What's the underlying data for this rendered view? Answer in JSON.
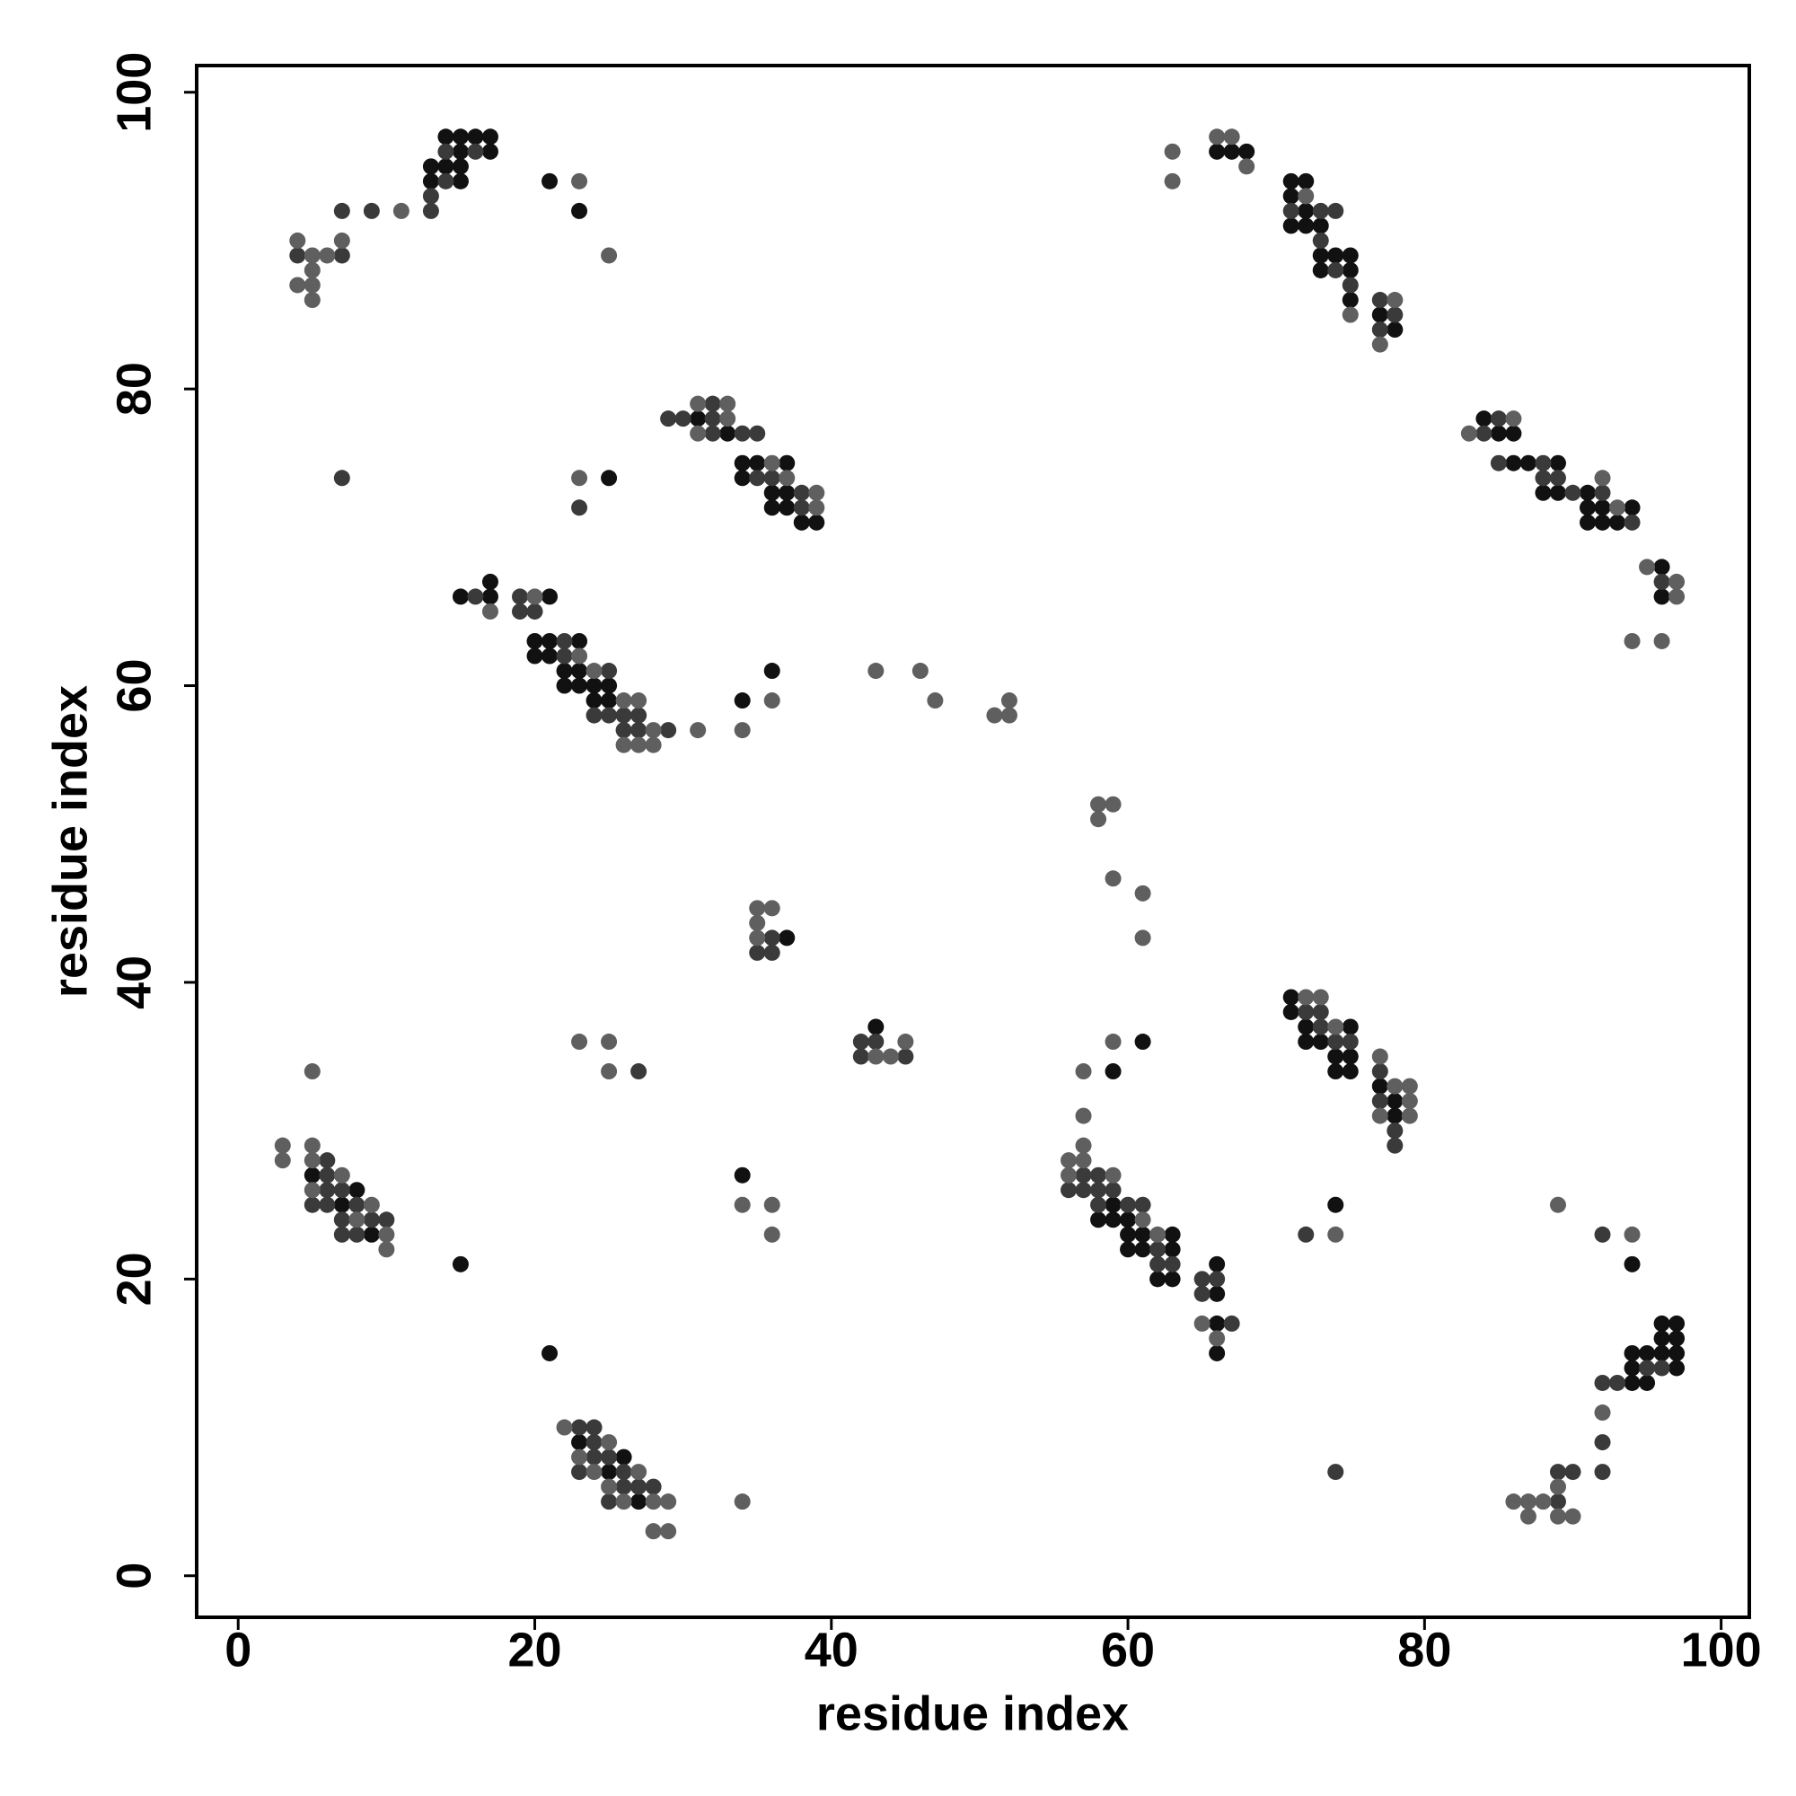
{
  "chart_data": {
    "type": "scatter",
    "xlabel": "residue index",
    "ylabel": "residue index",
    "xlim": [
      -2.8,
      101.9
    ],
    "ylim": [
      -2.8,
      101.8
    ],
    "xticks": [
      0,
      20,
      40,
      60,
      80,
      100
    ],
    "yticks": [
      0,
      20,
      40,
      60,
      80,
      100
    ],
    "grid": false,
    "series": [
      {
        "color": "#111111",
        "x": [
          13,
          13,
          14,
          14,
          15,
          15,
          15,
          15,
          16,
          17,
          17,
          21,
          23,
          31,
          33,
          34,
          34,
          35,
          36,
          36,
          37,
          37,
          37,
          38,
          39,
          25,
          15,
          17,
          17,
          21,
          20,
          20,
          21,
          21,
          22,
          22,
          23,
          23,
          23,
          24,
          24,
          25,
          25,
          34,
          36,
          37,
          43,
          5,
          7,
          8,
          9,
          15,
          21,
          23,
          25,
          26,
          27,
          34,
          59,
          61,
          58,
          59,
          59,
          60,
          60,
          61,
          61,
          60,
          62,
          63,
          63,
          63,
          66,
          66,
          66,
          66,
          71,
          71,
          72,
          72,
          73,
          74,
          74,
          75,
          75,
          75,
          77,
          78,
          78,
          74,
          66,
          67,
          68,
          71,
          71,
          71,
          72,
          72,
          72,
          73,
          73,
          73,
          74,
          75,
          75,
          75,
          77,
          78,
          84,
          85,
          86,
          86,
          87,
          88,
          89,
          89,
          91,
          91,
          91,
          92,
          92,
          93,
          94,
          96,
          96,
          94,
          94,
          94,
          94,
          95,
          95,
          96,
          96,
          96,
          97,
          97,
          97,
          97
        ],
        "values": [
          94,
          95,
          95,
          97,
          94,
          95,
          96,
          97,
          97,
          96,
          97,
          94,
          92,
          78,
          77,
          75,
          74,
          75,
          73,
          72,
          75,
          73,
          72,
          71,
          71,
          74,
          66,
          67,
          66,
          66,
          63,
          62,
          63,
          62,
          61,
          60,
          63,
          61,
          60,
          60,
          59,
          60,
          59,
          59,
          61,
          43,
          37,
          27,
          25,
          26,
          23,
          21,
          15,
          9,
          7,
          8,
          5,
          27,
          34,
          36,
          24,
          25,
          24,
          24,
          23,
          23,
          22,
          22,
          20,
          23,
          22,
          20,
          21,
          19,
          17,
          15,
          39,
          38,
          37,
          36,
          36,
          35,
          34,
          37,
          35,
          34,
          33,
          32,
          31,
          25,
          96,
          96,
          96,
          94,
          93,
          91,
          94,
          92,
          91,
          91,
          89,
          88,
          89,
          89,
          88,
          86,
          85,
          84,
          78,
          77,
          77,
          75,
          75,
          73,
          75,
          73,
          73,
          72,
          71,
          72,
          71,
          71,
          72,
          68,
          66,
          21,
          15,
          14,
          13,
          15,
          13,
          17,
          16,
          15,
          17,
          16,
          15,
          14
        ]
      },
      {
        "color": "#3a3a3a",
        "x": [
          4,
          7,
          7,
          9,
          13,
          13,
          14,
          14,
          16,
          29,
          30,
          32,
          32,
          32,
          34,
          35,
          35,
          36,
          38,
          38,
          7,
          23,
          16,
          19,
          19,
          20,
          22,
          22,
          24,
          25,
          25,
          26,
          26,
          27,
          27,
          29,
          36,
          35,
          36,
          42,
          42,
          43,
          45,
          27,
          5,
          6,
          6,
          6,
          6,
          7,
          7,
          7,
          8,
          8,
          9,
          10,
          23,
          23,
          24,
          24,
          24,
          25,
          25,
          26,
          26,
          27,
          28,
          56,
          57,
          57,
          58,
          58,
          58,
          59,
          60,
          61,
          62,
          62,
          63,
          65,
          65,
          66,
          67,
          72,
          73,
          73,
          74,
          75,
          77,
          77,
          78,
          78,
          72,
          74,
          71,
          73,
          73,
          74,
          74,
          75,
          77,
          77,
          78,
          84,
          85,
          85,
          88,
          88,
          89,
          90,
          92,
          94,
          96,
          92,
          92,
          93,
          95,
          96,
          92,
          92,
          89,
          90,
          89
        ],
        "values": [
          89,
          92,
          89,
          92,
          92,
          93,
          94,
          96,
          96,
          78,
          78,
          79,
          78,
          77,
          77,
          77,
          74,
          74,
          73,
          72,
          74,
          72,
          66,
          66,
          65,
          65,
          63,
          62,
          58,
          61,
          58,
          58,
          57,
          58,
          57,
          57,
          43,
          42,
          42,
          36,
          35,
          36,
          35,
          34,
          25,
          28,
          27,
          26,
          25,
          26,
          24,
          23,
          25,
          23,
          24,
          24,
          10,
          7,
          10,
          9,
          8,
          8,
          5,
          7,
          6,
          6,
          6,
          26,
          27,
          26,
          27,
          26,
          25,
          26,
          25,
          25,
          22,
          21,
          21,
          20,
          19,
          20,
          17,
          38,
          38,
          37,
          36,
          36,
          34,
          32,
          30,
          29,
          23,
          7,
          92,
          92,
          90,
          92,
          88,
          87,
          86,
          84,
          85,
          77,
          78,
          75,
          75,
          74,
          74,
          73,
          73,
          71,
          67,
          23,
          13,
          13,
          14,
          14,
          9,
          7,
          7,
          7,
          5
        ]
      },
      {
        "color": "#5f5f5f",
        "x": [
          4,
          5,
          6,
          5,
          4,
          5,
          5,
          7,
          11,
          23,
          25,
          31,
          31,
          33,
          33,
          36,
          37,
          39,
          39,
          23,
          17,
          20,
          23,
          24,
          26,
          26,
          27,
          27,
          28,
          28,
          31,
          34,
          36,
          43,
          46,
          47,
          51,
          52,
          52,
          35,
          36,
          35,
          35,
          43,
          44,
          45,
          23,
          25,
          25,
          5,
          3,
          3,
          5,
          5,
          5,
          7,
          8,
          9,
          10,
          10,
          22,
          23,
          24,
          25,
          25,
          26,
          27,
          28,
          28,
          29,
          29,
          34,
          34,
          36,
          36,
          58,
          59,
          58,
          59,
          61,
          61,
          57,
          59,
          57,
          57,
          56,
          57,
          56,
          59,
          61,
          62,
          65,
          66,
          72,
          73,
          74,
          77,
          77,
          78,
          79,
          79,
          79,
          74,
          63,
          63,
          66,
          67,
          68,
          72,
          75,
          77,
          78,
          83,
          86,
          92,
          93,
          95,
          97,
          97,
          94,
          96,
          89,
          94,
          92,
          89,
          86,
          87,
          87,
          88,
          89,
          90
        ],
        "values": [
          90,
          89,
          89,
          88,
          87,
          87,
          86,
          90,
          92,
          94,
          89,
          79,
          77,
          79,
          78,
          75,
          74,
          73,
          72,
          74,
          65,
          66,
          62,
          61,
          59,
          56,
          59,
          56,
          57,
          56,
          57,
          57,
          59,
          61,
          61,
          59,
          58,
          59,
          58,
          45,
          45,
          44,
          43,
          35,
          35,
          36,
          36,
          36,
          34,
          34,
          29,
          28,
          29,
          28,
          26,
          27,
          24,
          25,
          23,
          22,
          10,
          8,
          7,
          9,
          6,
          5,
          7,
          5,
          3,
          5,
          3,
          5,
          25,
          25,
          23,
          52,
          52,
          51,
          47,
          46,
          43,
          34,
          36,
          31,
          29,
          28,
          28,
          27,
          27,
          24,
          23,
          17,
          16,
          39,
          39,
          37,
          35,
          31,
          33,
          33,
          32,
          31,
          23,
          96,
          94,
          97,
          97,
          95,
          93,
          85,
          83,
          86,
          77,
          78,
          74,
          72,
          68,
          67,
          66,
          63,
          63,
          25,
          23,
          11,
          6,
          5,
          5,
          4,
          5,
          4,
          4
        ]
      }
    ]
  }
}
